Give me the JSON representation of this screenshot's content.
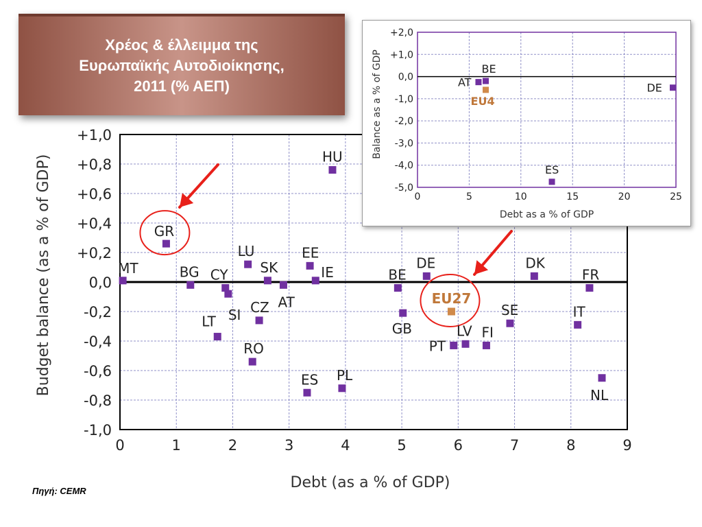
{
  "header": {
    "title": "Χρέος & έλλειμμα της\nΕυρωπαϊκής Αυτοδιοίκησης,\n2011 (% ΑΕΠ)"
  },
  "footer": {
    "source": "Πηγή: CEMR"
  },
  "colors": {
    "point": "#7030a0",
    "highlight": "#d08a4a",
    "highlight_label": "#c0783a",
    "arrow": "#e8201a",
    "circle": "#e8201a",
    "grid": "#9090c8",
    "axis": "#000000"
  },
  "chart_data": [
    {
      "type": "scatter",
      "title": "",
      "xlabel": "Debt (as a % of GDP)",
      "ylabel": "Budget balance (as a % of GDP)",
      "xlim": [
        0,
        9
      ],
      "ylim": [
        -1.0,
        1.0
      ],
      "xticks": [
        0,
        1,
        2,
        3,
        4,
        5,
        6,
        7,
        8,
        9
      ],
      "xtick_labels": [
        "0",
        "1",
        "2",
        "3",
        "4",
        "5",
        "6",
        "7",
        "8",
        "9"
      ],
      "yticks": [
        1.0,
        0.8,
        0.6,
        0.4,
        0.2,
        0.0,
        -0.2,
        -0.4,
        -0.6,
        -0.8,
        -1.0
      ],
      "ytick_labels": [
        "+1,0",
        "+0,8",
        "+0,6",
        "+0,4",
        "+0,2",
        "0,0",
        "-0,2",
        "-0,4",
        "-0,6",
        "-0,8",
        "-1,0"
      ],
      "grid": true,
      "points": [
        {
          "label": "MT",
          "x": 0.05,
          "y": 0.01
        },
        {
          "label": "GR",
          "x": 0.82,
          "y": 0.26,
          "circled": true
        },
        {
          "label": "BG",
          "x": 1.25,
          "y": -0.02
        },
        {
          "label": "CY",
          "x": 1.87,
          "y": -0.04
        },
        {
          "label": "SI",
          "x": 1.92,
          "y": -0.08
        },
        {
          "label": "LT",
          "x": 1.73,
          "y": -0.37
        },
        {
          "label": "LU",
          "x": 2.27,
          "y": 0.12
        },
        {
          "label": "SK",
          "x": 2.62,
          "y": 0.01
        },
        {
          "label": "CZ",
          "x": 2.47,
          "y": -0.26
        },
        {
          "label": "RO",
          "x": 2.35,
          "y": -0.54
        },
        {
          "label": "AT",
          "x": 2.9,
          "y": -0.02
        },
        {
          "label": "EE",
          "x": 3.37,
          "y": 0.11
        },
        {
          "label": "IE",
          "x": 3.47,
          "y": 0.01
        },
        {
          "label": "HU",
          "x": 3.77,
          "y": 0.76
        },
        {
          "label": "ES",
          "x": 3.32,
          "y": -0.75
        },
        {
          "label": "PL",
          "x": 3.94,
          "y": -0.72
        },
        {
          "label": "BE",
          "x": 4.93,
          "y": -0.04
        },
        {
          "label": "GB",
          "x": 5.02,
          "y": -0.21
        },
        {
          "label": "DE",
          "x": 5.44,
          "y": 0.04
        },
        {
          "label": "EU27",
          "x": 5.88,
          "y": -0.2,
          "highlight": true,
          "circled": true
        },
        {
          "label": "PT",
          "x": 5.92,
          "y": -0.43
        },
        {
          "label": "LV",
          "x": 6.13,
          "y": -0.42
        },
        {
          "label": "FI",
          "x": 6.5,
          "y": -0.43
        },
        {
          "label": "SE",
          "x": 6.92,
          "y": -0.28
        },
        {
          "label": "DK",
          "x": 7.35,
          "y": 0.04
        },
        {
          "label": "IT",
          "x": 8.12,
          "y": -0.29
        },
        {
          "label": "FR",
          "x": 8.33,
          "y": -0.04
        },
        {
          "label": "NL",
          "x": 8.55,
          "y": -0.65
        }
      ]
    },
    {
      "type": "scatter",
      "title": "",
      "xlabel": "Debt as a % of GDP",
      "ylabel": "Balance as a % of GDP",
      "xlim": [
        0,
        25
      ],
      "ylim": [
        -5.0,
        2.0
      ],
      "xticks": [
        0,
        5,
        10,
        15,
        20,
        25
      ],
      "xtick_labels": [
        "0",
        "5",
        "10",
        "15",
        "20",
        "25"
      ],
      "yticks": [
        2.0,
        1.0,
        0.0,
        -1.0,
        -2.0,
        -3.0,
        -4.0,
        -5.0
      ],
      "ytick_labels": [
        "+2,0",
        "+1,0",
        "0,0",
        "-1,0",
        "-2,0",
        "-3,0",
        "-4,0",
        "-5,0"
      ],
      "grid": true,
      "points": [
        {
          "label": "AT",
          "x": 5.9,
          "y": -0.25
        },
        {
          "label": "BE",
          "x": 6.6,
          "y": -0.2
        },
        {
          "label": "EU4",
          "x": 6.6,
          "y": -0.6,
          "highlight": true
        },
        {
          "label": "DE",
          "x": 24.7,
          "y": -0.5
        },
        {
          "label": "ES",
          "x": 13.0,
          "y": -4.75
        }
      ]
    }
  ]
}
